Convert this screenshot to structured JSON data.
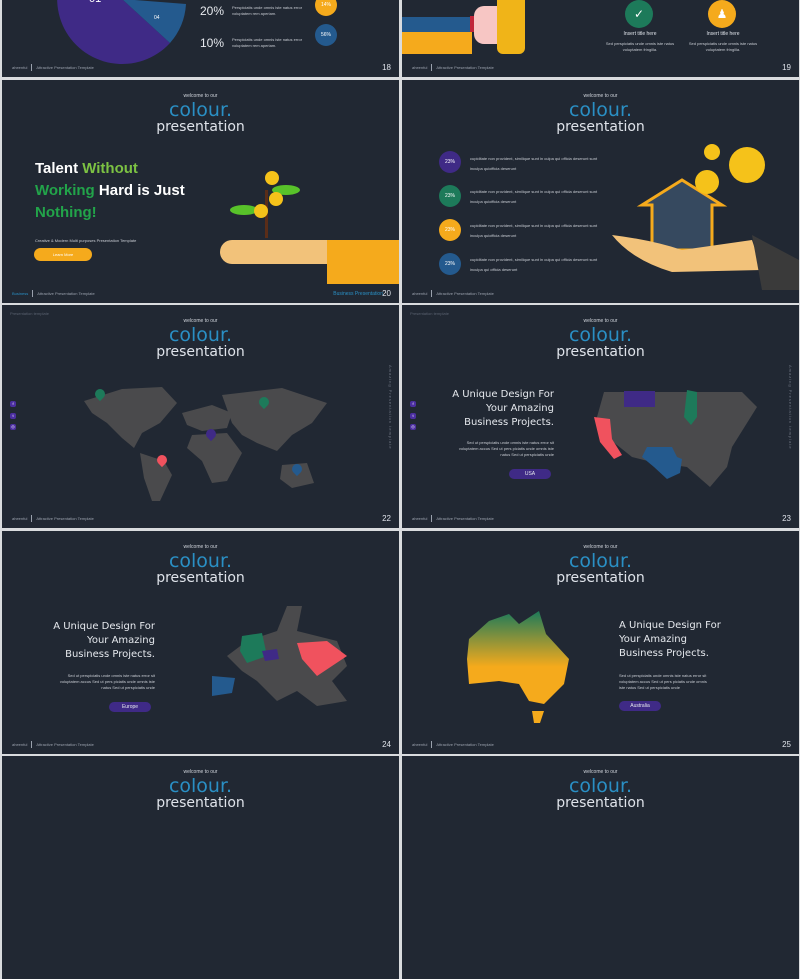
{
  "header": {
    "welcome": "welcome to our",
    "colour": "colour.",
    "presentation": "presentation"
  },
  "footer": {
    "brand": "aheenful",
    "template": "Attractive Presentation Template"
  },
  "corner_label": "Presentation template",
  "vertical_label": "Amazing Presentation template",
  "colors": {
    "background": "#212833",
    "blue": "#2a8fc4",
    "purple": "#3f2a86",
    "green": "#1d7a5a",
    "yellow": "#f5aa1c",
    "red": "#f0525e",
    "navy": "#245a8e",
    "land": "#4a4a4c"
  },
  "social_icons": [
    "facebook-icon",
    "twitter-icon",
    "instagram-icon"
  ],
  "slide18": {
    "page": "18",
    "pie_labels": [
      "01",
      "04"
    ],
    "rows": [
      {
        "pct": "20%",
        "text": "Perspiciatis unde omnis iste natus error voluptatem rem aperiam.",
        "badge": "14%"
      },
      {
        "pct": "10%",
        "text": "Perspiciatis unde omnis iste natus error voluptatem rem aperiam.",
        "badge": "56%"
      }
    ]
  },
  "slide19": {
    "page": "19",
    "items": [
      {
        "title": "Insert title here",
        "text": "Sed perspiciatis unde omnis iste natus voluptatem fringilla.",
        "icon": "handshake-icon"
      },
      {
        "title": "Insert title here",
        "text": "Sed perspiciatis unde omnis iste natus voluptatem fringilla.",
        "icon": "team-icon"
      }
    ]
  },
  "slide20": {
    "page": "20",
    "title_parts": [
      "Talent ",
      "Without",
      "Working",
      " Hard is Just",
      "Nothing!"
    ],
    "subtitle": "Creative & Modern Multi purposes Presentation Template",
    "button": "Learn More",
    "footer_left": "Business",
    "footer_right": "Business Presentation"
  },
  "slide21": {
    "page": "21",
    "items": [
      {
        "pct": "23%",
        "text": "cupiditate non provident, similique sunt in culpa qui officia deserunt sunt inculpa quiofficia deserunt"
      },
      {
        "pct": "23%",
        "text": "cupiditate non provident, similique sunt in culpa qui officia deserunt sunt inculpa quiofficia deserunt"
      },
      {
        "pct": "23%",
        "text": "cupiditate non provident, similique sunt in culpa qui officia deserunt sunt inculpa quiofficia deserunt"
      },
      {
        "pct": "23%",
        "text": "cupiditate non provident, similique sunt in culpa qui officia deserunt sunt inculpa qui officia deserunt"
      }
    ]
  },
  "slide22": {
    "page": "22"
  },
  "slide23": {
    "page": "23",
    "heading": "A Unique Design For Your Amazing Business Projects.",
    "body": "Sed ut perspiciatis unde omnis iste natus error sit voluptatem accus Sed ut pers piciatis unde omnis iste natus Sed ut perspiciatis unde",
    "button": "USA"
  },
  "slide24": {
    "page": "24",
    "heading": "A Unique Design For Your Amazing Business Projects.",
    "body": "Sed ut perspiciatis unde omnis iste natus error sit voluptatem accus Sed ut pers piciatis unde omnis iste natus Sed ut perspiciatis unde",
    "button": "Europe"
  },
  "slide25": {
    "page": "25",
    "heading": "A Unique Design For Your Amazing Business Projects.",
    "body": "Sed ut perspiciatis unde omnis iste natus error sit voluptatem accus Sed ut pers piciatis unde omnis iste natus Sed ut perspiciatis unde",
    "button": "Australia"
  }
}
